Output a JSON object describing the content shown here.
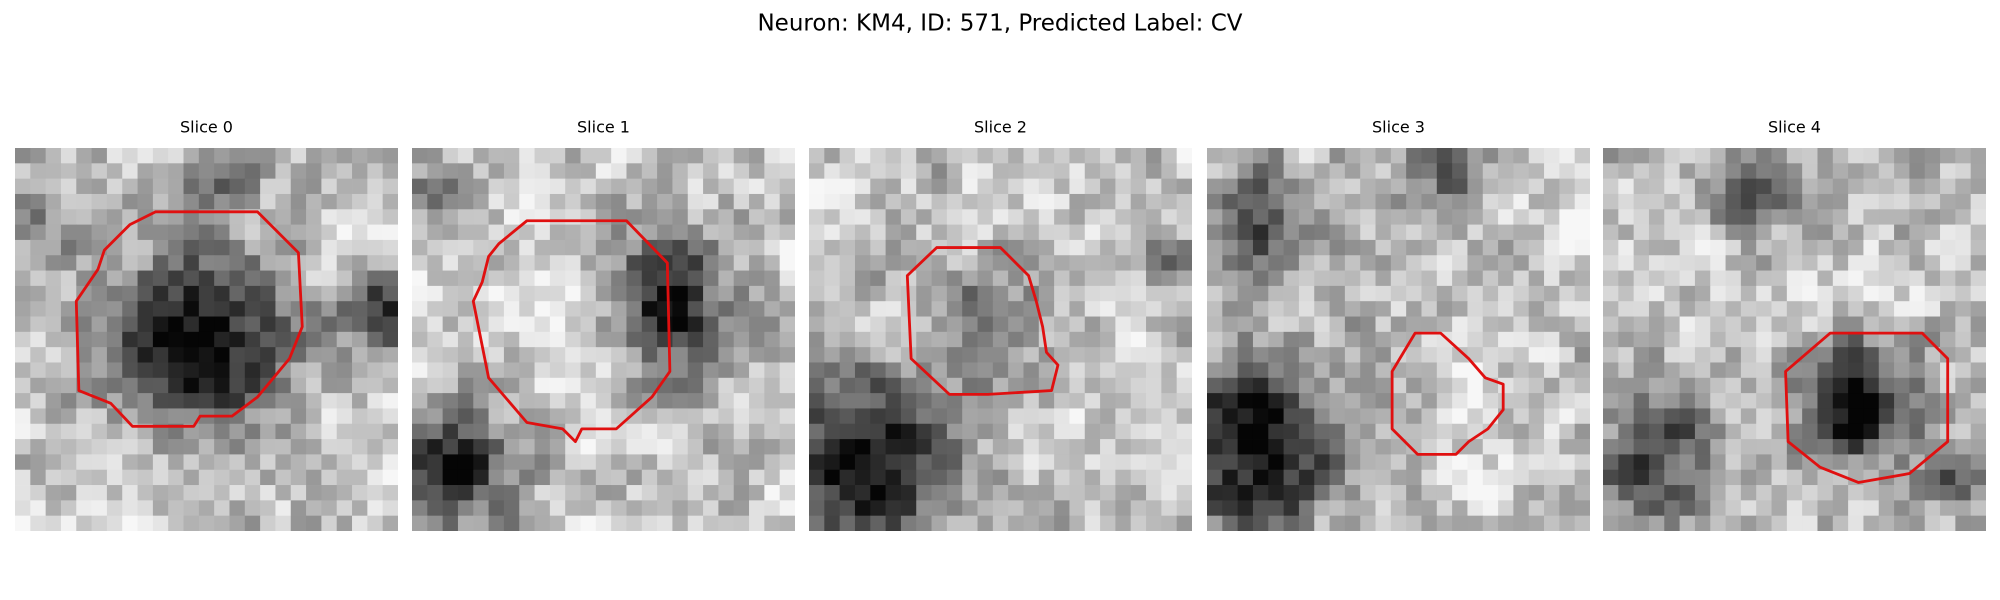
{
  "title": "Neuron: KM4, ID: 571, Predicted Label: CV",
  "slices": [
    {
      "title": "Slice 0"
    },
    {
      "title": "Slice 1"
    },
    {
      "title": "Slice 2"
    },
    {
      "title": "Slice 3"
    },
    {
      "title": "Slice 4"
    }
  ]
}
